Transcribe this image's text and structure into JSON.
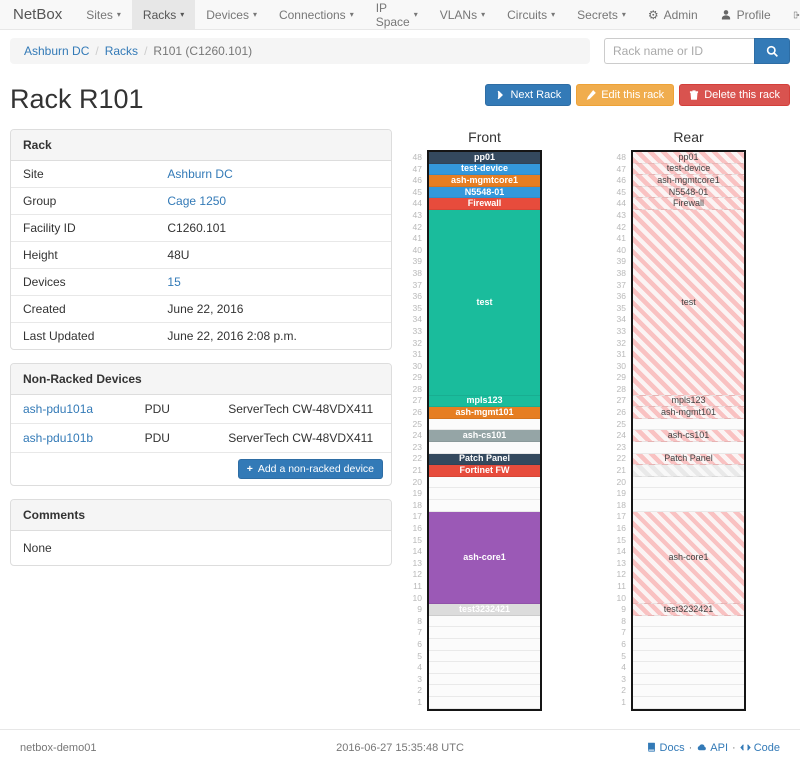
{
  "navbar": {
    "brand": "NetBox",
    "items": [
      {
        "label": "Sites",
        "active": false
      },
      {
        "label": "Racks",
        "active": true
      },
      {
        "label": "Devices",
        "active": false
      },
      {
        "label": "Connections",
        "active": false
      },
      {
        "label": "IP Space",
        "active": false
      },
      {
        "label": "VLANs",
        "active": false
      },
      {
        "label": "Circuits",
        "active": false
      },
      {
        "label": "Secrets",
        "active": false
      }
    ],
    "right": {
      "admin": "Admin",
      "profile": "Profile",
      "logout": "Log out"
    }
  },
  "breadcrumb": {
    "items": [
      {
        "label": "Ashburn DC",
        "link": true
      },
      {
        "label": "Racks",
        "link": true
      },
      {
        "label": "R101 (C1260.101)",
        "link": false
      }
    ]
  },
  "search": {
    "placeholder": "Rack name or ID"
  },
  "actions": {
    "next": "Next Rack",
    "edit": "Edit this rack",
    "delete": "Delete this rack"
  },
  "page_title": "Rack R101",
  "rack_panel": {
    "title": "Rack",
    "rows": [
      {
        "label": "Site",
        "value": "Ashburn DC",
        "link": true
      },
      {
        "label": "Group",
        "value": "Cage 1250",
        "link": true
      },
      {
        "label": "Facility ID",
        "value": "C1260.101",
        "link": false
      },
      {
        "label": "Height",
        "value": "48U",
        "link": false
      },
      {
        "label": "Devices",
        "value": "15",
        "link": true
      },
      {
        "label": "Created",
        "value": "June 22, 2016",
        "link": false
      },
      {
        "label": "Last Updated",
        "value": "June 22, 2016 2:08 p.m.",
        "link": false
      }
    ]
  },
  "non_racked": {
    "title": "Non-Racked Devices",
    "rows": [
      {
        "name": "ash-pdu101a",
        "role": "PDU",
        "type": "ServerTech CW-48VDX411"
      },
      {
        "name": "ash-pdu101b",
        "role": "PDU",
        "type": "ServerTech CW-48VDX411"
      }
    ],
    "add_button": "Add a non-racked device"
  },
  "comments": {
    "title": "Comments",
    "body": "None"
  },
  "elevations": {
    "units_total": 48,
    "colors": {
      "dark": "#34495e",
      "blue": "#3498db",
      "orange": "#e67e22",
      "red": "#e74c3c",
      "teal": "#1abc9c",
      "gray": "#95a5a6",
      "purple": "#9b59b6",
      "lightgray": "#dcdcdc"
    },
    "front": {
      "title": "Front",
      "slots": [
        {
          "u": 48,
          "h": 1,
          "label": "pp01",
          "color": "#34495e"
        },
        {
          "u": 47,
          "h": 1,
          "label": "test-device",
          "color": "#3498db"
        },
        {
          "u": 46,
          "h": 1,
          "label": "ash-mgmtcore1",
          "color": "#e67e22"
        },
        {
          "u": 45,
          "h": 1,
          "label": "N5548-01",
          "color": "#3498db"
        },
        {
          "u": 44,
          "h": 1,
          "label": "Firewall",
          "color": "#e74c3c"
        },
        {
          "u": 43,
          "h": 16,
          "label": "test",
          "color": "#1abc9c"
        },
        {
          "u": 27,
          "h": 1,
          "label": "mpls123",
          "color": "#1abc9c"
        },
        {
          "u": 26,
          "h": 1,
          "label": "ash-mgmt101",
          "color": "#e67e22"
        },
        {
          "u": 25,
          "h": 1,
          "empty": true
        },
        {
          "u": 24,
          "h": 1,
          "label": "ash-cs101",
          "color": "#95a5a6"
        },
        {
          "u": 23,
          "h": 1,
          "empty": true
        },
        {
          "u": 22,
          "h": 1,
          "label": "Patch Panel",
          "color": "#34495e"
        },
        {
          "u": 21,
          "h": 1,
          "label": "Fortinet FW",
          "color": "#e74c3c"
        },
        {
          "u": 20,
          "h": 3,
          "empty": true
        },
        {
          "u": 17,
          "h": 8,
          "label": "ash-core1",
          "color": "#9b59b6"
        },
        {
          "u": 9,
          "h": 1,
          "label": "test3232421",
          "color": "#dcdcdc",
          "text": "#ffffff"
        },
        {
          "u": 8,
          "h": 8,
          "empty": true
        }
      ]
    },
    "rear": {
      "title": "Rear",
      "slots": [
        {
          "u": 48,
          "h": 1,
          "label": "pp01",
          "style": "striped"
        },
        {
          "u": 47,
          "h": 1,
          "label": "test-device",
          "style": "striped"
        },
        {
          "u": 46,
          "h": 1,
          "label": "ash-mgmtcore1",
          "style": "striped"
        },
        {
          "u": 45,
          "h": 1,
          "label": "N5548-01",
          "style": "striped"
        },
        {
          "u": 44,
          "h": 1,
          "label": "Firewall",
          "style": "striped"
        },
        {
          "u": 43,
          "h": 16,
          "label": "test",
          "style": "striped"
        },
        {
          "u": 27,
          "h": 1,
          "label": "mpls123",
          "style": "striped"
        },
        {
          "u": 26,
          "h": 1,
          "label": "ash-mgmt101",
          "style": "striped"
        },
        {
          "u": 25,
          "h": 1,
          "empty": true
        },
        {
          "u": 24,
          "h": 1,
          "label": "ash-cs101",
          "style": "striped"
        },
        {
          "u": 23,
          "h": 1,
          "empty": true
        },
        {
          "u": 22,
          "h": 1,
          "label": "Patch Panel",
          "style": "striped"
        },
        {
          "u": 21,
          "h": 1,
          "label": "",
          "style": "striped-gray"
        },
        {
          "u": 20,
          "h": 3,
          "empty": true
        },
        {
          "u": 17,
          "h": 8,
          "label": "ash-core1",
          "style": "striped"
        },
        {
          "u": 9,
          "h": 1,
          "label": "test3232421",
          "style": "striped"
        },
        {
          "u": 8,
          "h": 8,
          "empty": true
        }
      ]
    }
  },
  "footer": {
    "hostname": "netbox-demo01",
    "timestamp": "2016-06-27 15:35:48 UTC",
    "links": [
      {
        "label": "Docs"
      },
      {
        "label": "API"
      },
      {
        "label": "Code"
      }
    ]
  }
}
